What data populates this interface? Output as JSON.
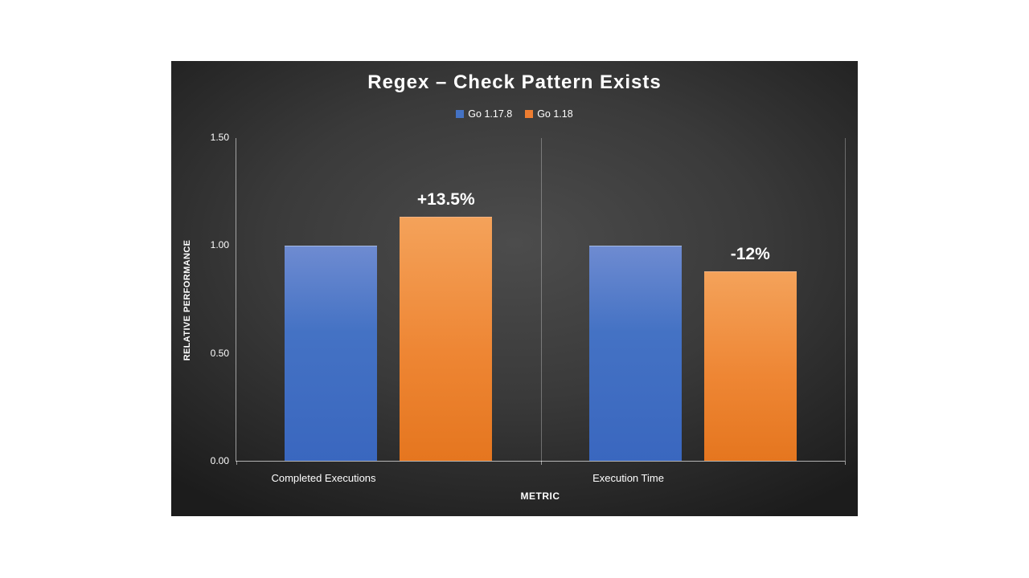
{
  "chart_data": {
    "type": "bar",
    "title": "Regex – Check Pattern Exists",
    "categories": [
      "Completed Executions",
      "Execution Time"
    ],
    "series": [
      {
        "name": "Go 1.17.8",
        "color": "#4472c4",
        "values": [
          1.0,
          1.0
        ]
      },
      {
        "name": "Go 1.18",
        "color": "#ed7d31",
        "values": [
          1.135,
          0.88
        ]
      }
    ],
    "annotations": [
      {
        "category": "Completed Executions",
        "series": "Go 1.18",
        "text": "+13.5%"
      },
      {
        "category": "Execution Time",
        "series": "Go 1.18",
        "text": "-12%"
      }
    ],
    "xlabel": "METRIC",
    "ylabel": "RELATIVE PERFORMANCE",
    "ylim": [
      0,
      1.5
    ],
    "yticks": [
      "0.00",
      "0.50",
      "1.00",
      "1.50"
    ],
    "legend_position": "top",
    "grid": "category-boundaries",
    "background": "#3a3a3a"
  }
}
